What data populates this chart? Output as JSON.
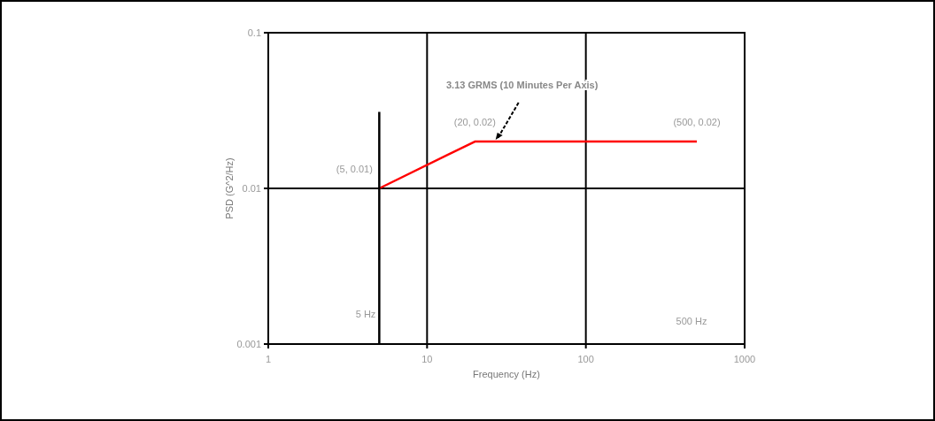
{
  "chart_data": {
    "type": "line",
    "xlabel": "Frequency (Hz)",
    "ylabel": "PSD (G^2/Hz)",
    "log": "xy",
    "grid": true,
    "marker": "none",
    "line_style": "solid",
    "xlim": [
      1,
      1000
    ],
    "xticks": [
      1,
      10,
      100,
      1000
    ],
    "ylim": [
      0.001,
      0.1
    ],
    "yticks": [
      0.001,
      0.01,
      0.1
    ],
    "series": [
      {
        "color": "#ff0000",
        "x": [
          5,
          20,
          500
        ],
        "values": [
          0.01,
          0.02,
          0.02
        ]
      },
      {
        "color": "#000000",
        "x": [
          5,
          5
        ],
        "values": [
          0.001,
          0.031
        ]
      }
    ],
    "annotations": [
      {
        "text": "(5, 0.01)",
        "x": 5,
        "y": 0.01
      },
      {
        "text": "(20, 0.02)",
        "x": 20,
        "y": 0.02
      },
      {
        "text": "(500, 0.02)",
        "x": 500,
        "y": 0.02
      },
      {
        "text": "3.13 GRMS (10 Minutes Per Axis)",
        "x": 27,
        "y": 0.02
      },
      "5 Hz",
      "500 Hz"
    ]
  }
}
